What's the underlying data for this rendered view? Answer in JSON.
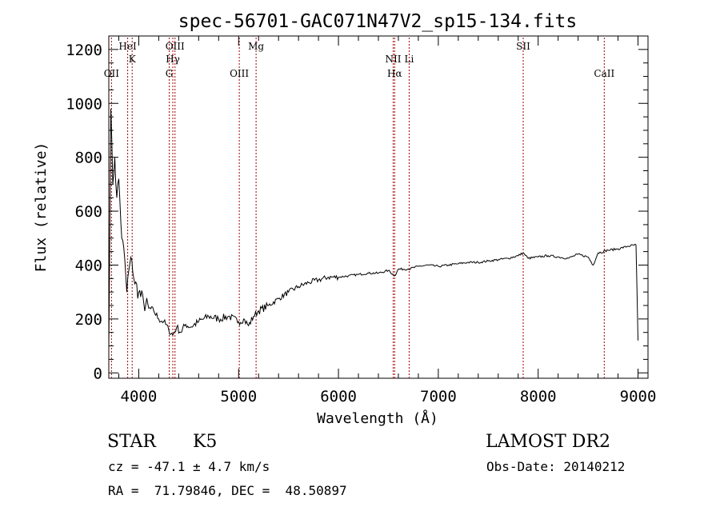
{
  "chart_data": {
    "type": "line",
    "title": "spec-56701-GAC071N47V2_sp15-134.fits",
    "xlabel": "Wavelength (Å)",
    "ylabel": "Flux (relative)",
    "xlim": [
      3700,
      9100
    ],
    "ylim": [
      -20,
      1250
    ],
    "xticks": [
      4000,
      5000,
      6000,
      7000,
      8000,
      9000
    ],
    "yticks": [
      0,
      200,
      400,
      600,
      800,
      1000,
      1200
    ],
    "grid": false,
    "line_color": "#000000",
    "marker_color": "#a00000",
    "series": [
      {
        "x": [
          3700,
          3720,
          3740,
          3760,
          3780,
          3800,
          3830,
          3860,
          3880,
          3900,
          3930,
          3960,
          4000,
          4050,
          4100,
          4150,
          4200,
          4250,
          4300,
          4340,
          4380,
          4420,
          4470,
          4520,
          4600,
          4700,
          4800,
          4900,
          5000,
          5050,
          5100,
          5150,
          5200,
          5300,
          5400,
          5500,
          5600,
          5700,
          5800,
          5900,
          6000,
          6100,
          6200,
          6300,
          6400,
          6500,
          6563,
          6600,
          6700,
          6800,
          6900,
          7000,
          7100,
          7200,
          7300,
          7400,
          7500,
          7600,
          7700,
          7800,
          7850,
          7900,
          8000,
          8100,
          8200,
          8300,
          8400,
          8500,
          8550,
          8600,
          8700,
          8800,
          8900,
          8980,
          9000
        ],
        "y": [
          90,
          980,
          700,
          800,
          650,
          720,
          500,
          420,
          300,
          380,
          420,
          330,
          300,
          260,
          240,
          230,
          200,
          190,
          160,
          140,
          170,
          150,
          180,
          170,
          190,
          210,
          200,
          210,
          190,
          200,
          175,
          210,
          230,
          250,
          275,
          300,
          320,
          335,
          345,
          355,
          355,
          360,
          365,
          370,
          370,
          380,
          360,
          385,
          385,
          395,
          400,
          395,
          400,
          405,
          410,
          410,
          415,
          420,
          425,
          435,
          445,
          425,
          430,
          435,
          430,
          425,
          440,
          430,
          400,
          445,
          455,
          460,
          470,
          475,
          120
        ]
      }
    ],
    "line_markers": [
      {
        "x": 3727,
        "upper": "",
        "lower": "OII"
      },
      {
        "x": 3889,
        "upper": "HeI",
        "lower": ""
      },
      {
        "x": 3934,
        "upper": "K",
        "lower": ""
      },
      {
        "x": 4305,
        "upper": "",
        "lower": "G"
      },
      {
        "x": 4341,
        "upper": "Hγ",
        "lower": ""
      },
      {
        "x": 4363,
        "upper": "OIII",
        "lower": ""
      },
      {
        "x": 5007,
        "upper": "",
        "lower": "OIII"
      },
      {
        "x": 5175,
        "upper": "Mg",
        "lower": ""
      },
      {
        "x": 6548,
        "upper": "NII",
        "lower": ""
      },
      {
        "x": 6563,
        "upper": "",
        "lower": "Hα"
      },
      {
        "x": 6708,
        "upper": "Li",
        "lower": ""
      },
      {
        "x": 7850,
        "upper": "SII",
        "lower": ""
      },
      {
        "x": 8662,
        "upper": "",
        "lower": "CaII"
      }
    ]
  },
  "info": {
    "class_label": "STAR",
    "subclass_label": "K5",
    "survey_label": "LAMOST DR2",
    "cz_text": "cz = -47.1 ± 4.7 km/s",
    "obs_date_text": "Obs-Date: 20140212",
    "coords_text": "RA =  71.79846, DEC =  48.50897"
  }
}
